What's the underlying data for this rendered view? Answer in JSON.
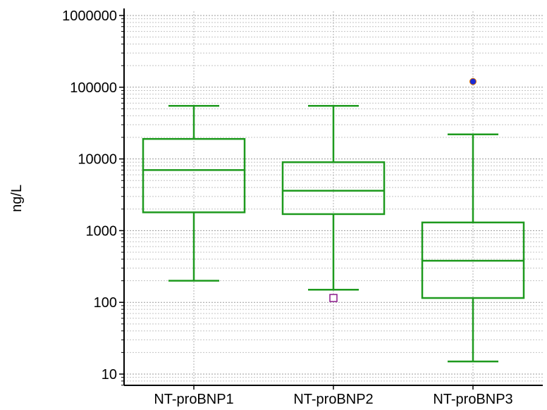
{
  "chart_data": {
    "type": "box",
    "title": "",
    "xlabel": "",
    "ylabel": "ng/L",
    "yscale": "log",
    "ylim": [
      7,
      1000000
    ],
    "yticks": [
      10,
      100,
      1000,
      10000,
      100000,
      1000000
    ],
    "ytick_labels": [
      "10",
      "100",
      "1000",
      "10000",
      "100000",
      "1000000"
    ],
    "grid": "on",
    "categories": [
      "NT-proBNP1",
      "NT-proBNP2",
      "NT-proBNP3"
    ],
    "boxes": [
      {
        "name": "NT-proBNP1",
        "whisker_low": 200,
        "q1": 1800,
        "median": 7000,
        "q3": 19000,
        "whisker_high": 55000,
        "outliers": []
      },
      {
        "name": "NT-proBNP2",
        "whisker_low": 150,
        "q1": 1700,
        "median": 3600,
        "q3": 9000,
        "whisker_high": 55000,
        "outliers": [
          {
            "value": 115,
            "marker": "square"
          }
        ]
      },
      {
        "name": "NT-proBNP3",
        "whisker_low": 15,
        "q1": 115,
        "median": 380,
        "q3": 1300,
        "whisker_high": 22000,
        "outliers": [
          {
            "value": 120000,
            "marker": "dot"
          }
        ]
      }
    ],
    "colors": {
      "box": "#1e9a1e",
      "outlier_square": "#8b1a8b",
      "outlier_dot": "#1a2bd6",
      "outlier_dot_edge": "#d46a00"
    }
  }
}
